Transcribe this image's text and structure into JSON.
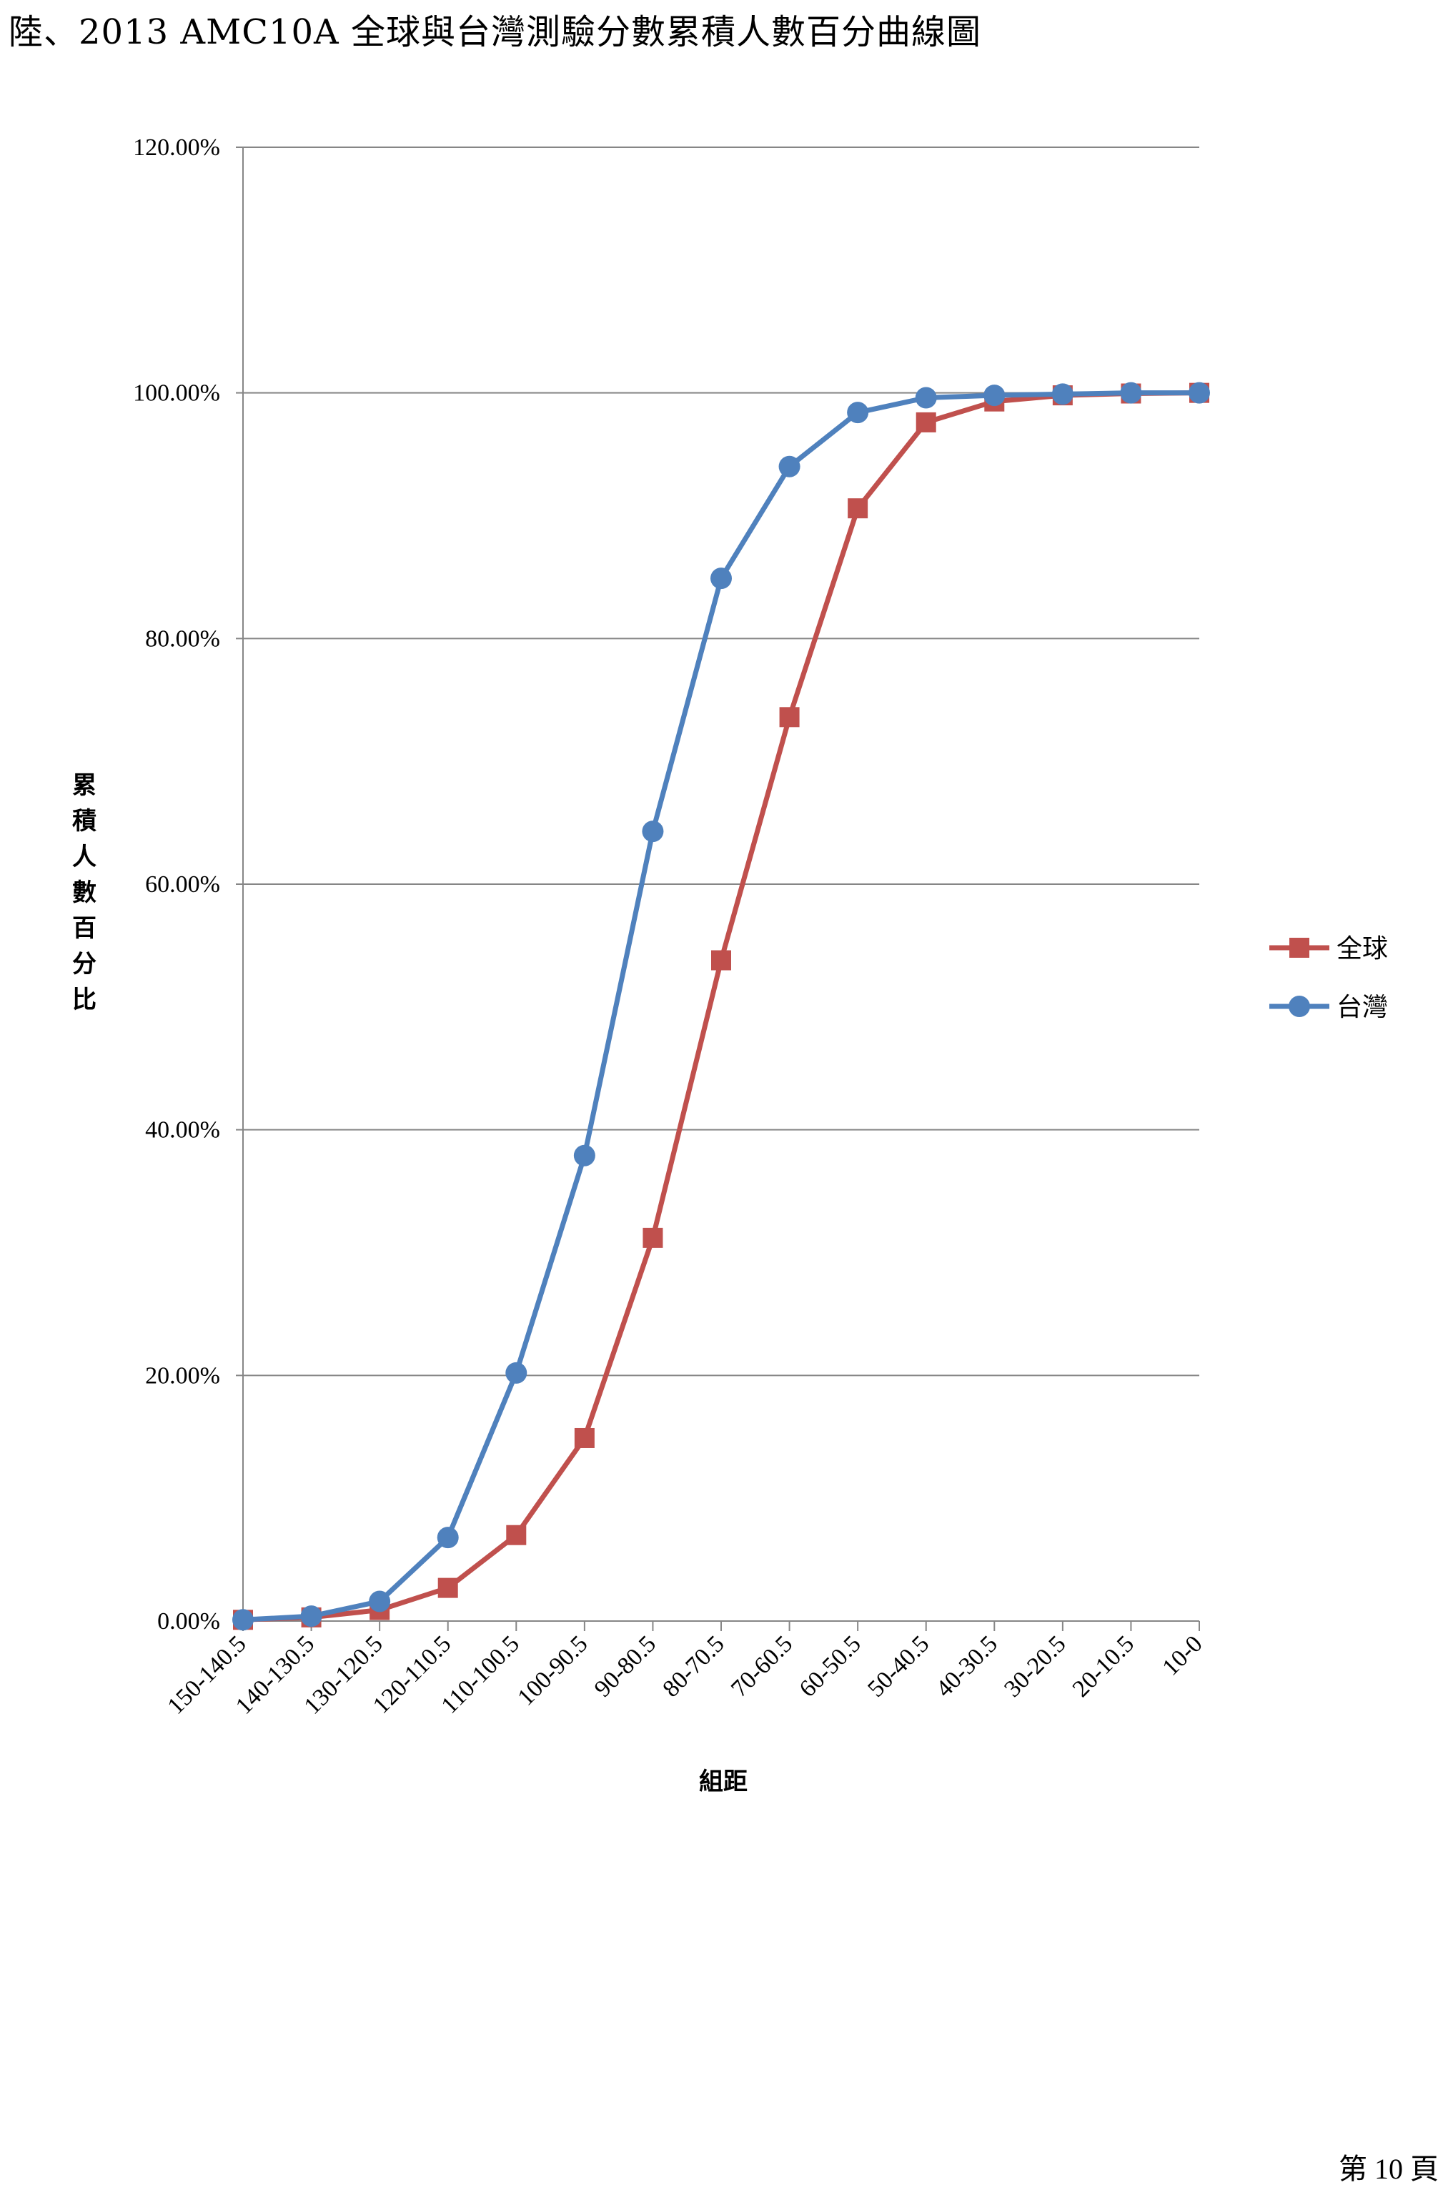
{
  "document": {
    "title": "陸、2013 AMC10A 全球與台灣測驗分數累積人數百分曲線圖",
    "page_number": "第 10 頁"
  },
  "colors": {
    "global": "#C0504D",
    "taiwan": "#4F81BD",
    "grid": "#868686",
    "axis": "#868686"
  },
  "chart_data": {
    "type": "line",
    "xlabel": "組距",
    "ylabel": "累積人數百分比",
    "y_tick_labels": [
      "0.00%",
      "20.00%",
      "40.00%",
      "60.00%",
      "80.00%",
      "100.00%",
      "120.00%"
    ],
    "ylim": [
      0,
      120
    ],
    "grid": true,
    "legend_position": "right",
    "categories": [
      "150-140.5",
      "140-130.5",
      "130-120.5",
      "120-110.5",
      "110-100.5",
      "100-90.5",
      "90-80.5",
      "80-70.5",
      "70-60.5",
      "60-50.5",
      "50-40.5",
      "40-30.5",
      "30-20.5",
      "20-10.5",
      "10-0"
    ],
    "series": [
      {
        "name": "全球",
        "marker": "square",
        "values": [
          0.1,
          0.3,
          0.9,
          2.7,
          7.0,
          14.9,
          31.2,
          53.8,
          73.6,
          90.6,
          97.6,
          99.3,
          99.8,
          99.95,
          100.0
        ]
      },
      {
        "name": "台灣",
        "marker": "circle",
        "values": [
          0.1,
          0.4,
          1.6,
          6.8,
          20.2,
          37.9,
          64.3,
          84.9,
          94.0,
          98.4,
          99.6,
          99.8,
          99.9,
          100.0,
          100.0
        ]
      }
    ]
  }
}
